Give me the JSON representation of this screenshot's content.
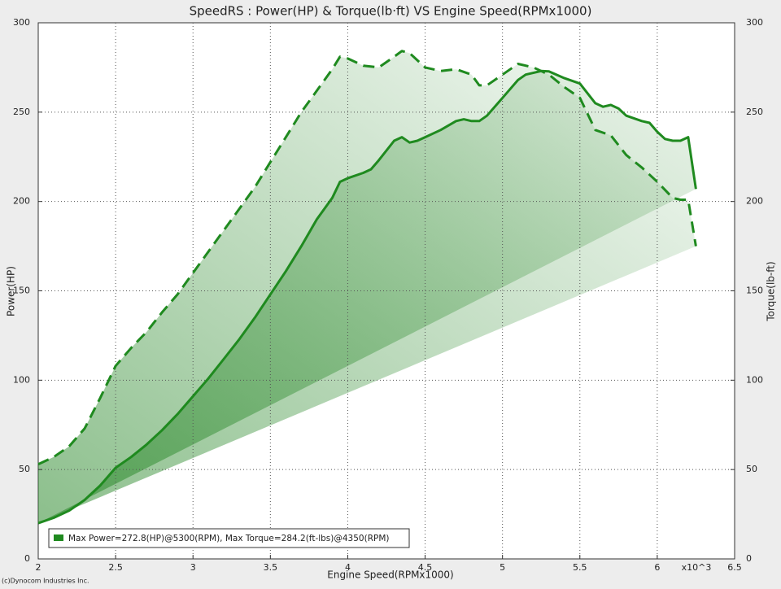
{
  "chart_data": {
    "type": "line",
    "title": "SpeedRS : Power(HP) & Torque(lb·ft) VS Engine Speed(RPMx1000)",
    "x_label": "Engine Speed(RPMx1000)",
    "x_multiplier_label": "x10^3",
    "y_label": "Power(HP)",
    "y2_label": "Torque(lb-ft)",
    "legend_label": "Max Power=272.8(HP)@5300(RPM), Max Torque=284.2(ft-lbs)@4350(RPM)",
    "footer": "(c)Dynocom Industries Inc.",
    "xlim": [
      2,
      6.5
    ],
    "xticks": [
      2,
      2.5,
      3,
      3.5,
      4,
      4.5,
      5,
      5.5,
      6,
      6.5
    ],
    "ylim": [
      0,
      300
    ],
    "yticks": [
      0,
      50,
      100,
      150,
      200,
      250,
      300
    ],
    "y2lim": [
      0,
      300
    ],
    "y2ticks": [
      0,
      50,
      100,
      150,
      200,
      250,
      300
    ],
    "grid": true,
    "series": [
      {
        "color": "#1f8a1f",
        "dash": false,
        "x": [
          2.0,
          2.1,
          2.2,
          2.3,
          2.4,
          2.5,
          2.6,
          2.7,
          2.8,
          2.9,
          3.0,
          3.1,
          3.2,
          3.3,
          3.4,
          3.5,
          3.6,
          3.7,
          3.8,
          3.9,
          3.95,
          4.0,
          4.1,
          4.15,
          4.2,
          4.3,
          4.35,
          4.4,
          4.45,
          4.5,
          4.6,
          4.7,
          4.75,
          4.8,
          4.85,
          4.9,
          5.0,
          5.1,
          5.15,
          5.25,
          5.3,
          5.4,
          5.5,
          5.6,
          5.65,
          5.7,
          5.75,
          5.8,
          5.9,
          5.95,
          6.0,
          6.05,
          6.1,
          6.15,
          6.2,
          6.25
        ],
        "values": [
          20,
          23,
          27,
          33,
          41,
          51,
          57,
          64,
          72,
          81,
          91,
          101,
          112,
          123,
          135,
          148,
          161,
          175,
          190,
          202,
          211,
          213,
          216,
          218,
          223,
          234,
          236,
          233,
          234,
          236,
          240,
          245,
          246,
          245,
          245,
          248,
          258,
          268,
          271,
          273,
          272.8,
          269,
          266,
          255,
          253,
          254,
          252,
          248,
          245,
          244,
          239,
          235,
          234,
          234,
          236,
          207
        ]
      },
      {
        "color": "#1f8a1f",
        "dash": true,
        "axis": "y2",
        "x": [
          2.0,
          2.1,
          2.2,
          2.3,
          2.4,
          2.5,
          2.6,
          2.7,
          2.8,
          2.9,
          3.0,
          3.1,
          3.2,
          3.3,
          3.4,
          3.5,
          3.6,
          3.7,
          3.8,
          3.9,
          3.95,
          4.0,
          4.1,
          4.2,
          4.3,
          4.35,
          4.4,
          4.5,
          4.6,
          4.7,
          4.8,
          4.85,
          4.9,
          5.0,
          5.1,
          5.2,
          5.3,
          5.4,
          5.5,
          5.6,
          5.7,
          5.8,
          5.9,
          6.0,
          6.1,
          6.15,
          6.2,
          6.25
        ],
        "values": [
          53,
          57,
          63,
          73,
          90,
          108,
          118,
          127,
          138,
          148,
          160,
          172,
          184,
          196,
          208,
          222,
          236,
          250,
          262,
          274,
          281,
          280,
          276,
          275,
          281,
          284.2,
          283,
          275,
          273,
          274,
          271,
          265,
          265,
          271,
          277,
          275,
          271,
          264,
          258,
          240,
          237,
          226,
          219,
          211,
          202,
          201,
          201,
          175
        ]
      }
    ]
  }
}
